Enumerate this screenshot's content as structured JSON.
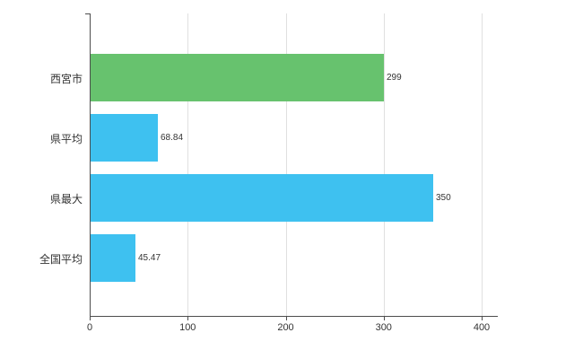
{
  "chart_data": {
    "type": "bar",
    "orientation": "horizontal",
    "title": "",
    "xlabel": "",
    "ylabel": "",
    "categories": [
      "西宮市",
      "県平均",
      "県最大",
      "全国平均"
    ],
    "values": [
      299,
      68.84,
      350,
      45.47
    ],
    "value_labels": [
      "299",
      "68.84",
      "350",
      "45.47"
    ],
    "bar_colors": [
      "#67c26e",
      "#3ec1f0",
      "#3ec1f0",
      "#3ec1f0"
    ],
    "x_ticks": [
      0,
      100,
      200,
      300,
      400
    ],
    "x_tick_labels": [
      "0",
      "100",
      "200",
      "300",
      "400"
    ],
    "xlim": [
      0,
      416
    ],
    "grid": true,
    "legend": "none",
    "axis_color": "#4d4d4d",
    "gridline_color": "#e0e0e0",
    "text_color": "#333333",
    "background_color": "#ffffff"
  }
}
